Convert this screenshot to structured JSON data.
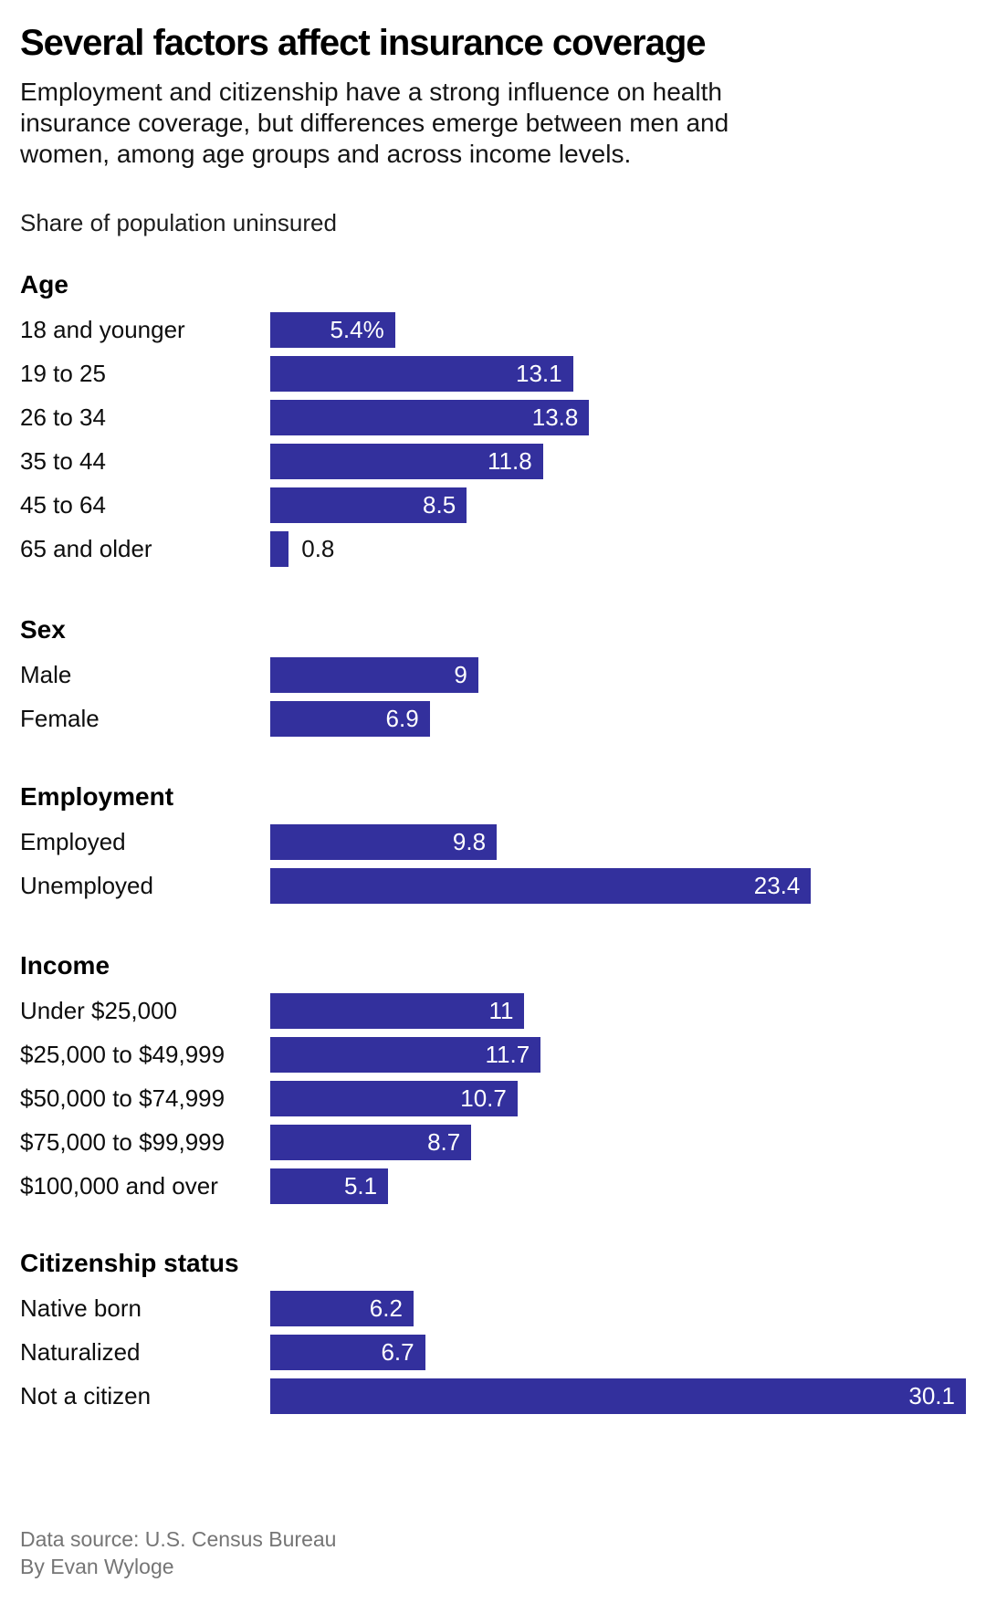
{
  "header": {
    "title": "Several factors affect insurance coverage",
    "subtitle_lines": [
      "Employment and citizenship have a strong influence on health",
      "insurance coverage, but differences emerge between men and",
      "women, among age groups and across income levels."
    ],
    "kicker": "Share of population uninsured"
  },
  "chart_data": {
    "type": "bar",
    "orientation": "horizontal",
    "units": "percent share of population uninsured",
    "bar_color": "#33309D",
    "value_label_color_inside": "#ffffff",
    "value_label_color_outside": "#111111",
    "xlim": [
      0,
      30.1
    ],
    "grid": false,
    "legend": false,
    "groups": [
      {
        "label": "Age",
        "rows": [
          {
            "label": "18 and younger",
            "value": 5.4,
            "display": "5.4%",
            "label_outside": false
          },
          {
            "label": "19 to 25",
            "value": 13.1,
            "display": "13.1",
            "label_outside": false
          },
          {
            "label": "26 to 34",
            "value": 13.8,
            "display": "13.8",
            "label_outside": false
          },
          {
            "label": "35 to 44",
            "value": 11.8,
            "display": "11.8",
            "label_outside": false
          },
          {
            "label": "45 to 64",
            "value": 8.5,
            "display": "8.5",
            "label_outside": false
          },
          {
            "label": "65 and older",
            "value": 0.8,
            "display": "0.8",
            "label_outside": true
          }
        ]
      },
      {
        "label": "Sex",
        "rows": [
          {
            "label": "Male",
            "value": 9,
            "display": "9",
            "label_outside": false
          },
          {
            "label": "Female",
            "value": 6.9,
            "display": "6.9",
            "label_outside": false
          }
        ]
      },
      {
        "label": "Employment",
        "rows": [
          {
            "label": "Employed",
            "value": 9.8,
            "display": "9.8",
            "label_outside": false
          },
          {
            "label": "Unemployed",
            "value": 23.4,
            "display": "23.4",
            "label_outside": false
          }
        ]
      },
      {
        "label": "Income",
        "rows": [
          {
            "label": "Under $25,000",
            "value": 11,
            "display": "11",
            "label_outside": false
          },
          {
            "label": "$25,000 to $49,999",
            "value": 11.7,
            "display": "11.7",
            "label_outside": false
          },
          {
            "label": "$50,000 to $74,999",
            "value": 10.7,
            "display": "10.7",
            "label_outside": false
          },
          {
            "label": "$75,000 to $99,999",
            "value": 8.7,
            "display": "8.7",
            "label_outside": false
          },
          {
            "label": "$100,000 and over",
            "value": 5.1,
            "display": "5.1",
            "label_outside": false
          }
        ]
      },
      {
        "label": "Citizenship status",
        "rows": [
          {
            "label": "Native born",
            "value": 6.2,
            "display": "6.2",
            "label_outside": false
          },
          {
            "label": "Naturalized",
            "value": 6.7,
            "display": "6.7",
            "label_outside": false
          },
          {
            "label": "Not a citizen",
            "value": 30.1,
            "display": "30.1",
            "label_outside": false
          }
        ]
      }
    ]
  },
  "footer": {
    "source": "Data source: U.S. Census Bureau",
    "byline": "By Evan Wyloge"
  }
}
